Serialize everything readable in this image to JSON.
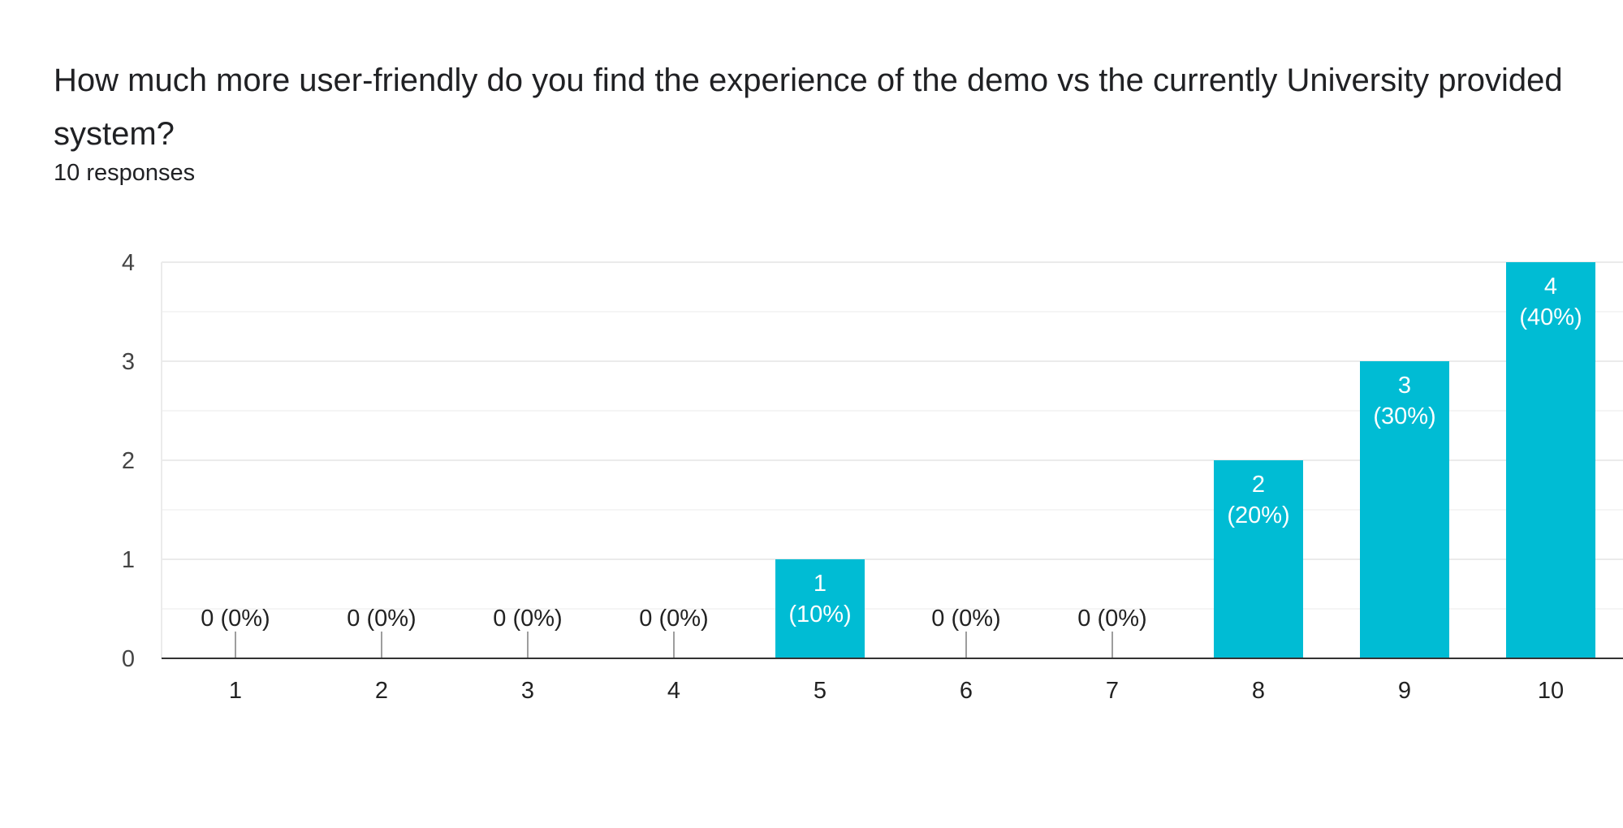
{
  "title": "How much more user-friendly do you find the experience of the demo vs the currently University provided system?",
  "responses": "10 responses",
  "chart_data": {
    "type": "bar",
    "categories": [
      "1",
      "2",
      "3",
      "4",
      "5",
      "6",
      "7",
      "8",
      "9",
      "10"
    ],
    "values": [
      0,
      0,
      0,
      0,
      1,
      0,
      0,
      2,
      3,
      4
    ],
    "data_labels": [
      "0 (0%)",
      "0 (0%)",
      "0 (0%)",
      "0 (0%)",
      "1 (10%)",
      "0 (0%)",
      "0 (0%)",
      "2 (20%)",
      "3 (30%)",
      "4 (40%)"
    ],
    "yticks": [
      "0",
      "1",
      "2",
      "3",
      "4"
    ],
    "ylim": [
      0,
      4
    ],
    "grid": true,
    "bar_color": "#00bcd4",
    "axis_color": "#333333",
    "grid_color": "#ebebeb",
    "minor_grid_color": "#f5f5f5"
  }
}
